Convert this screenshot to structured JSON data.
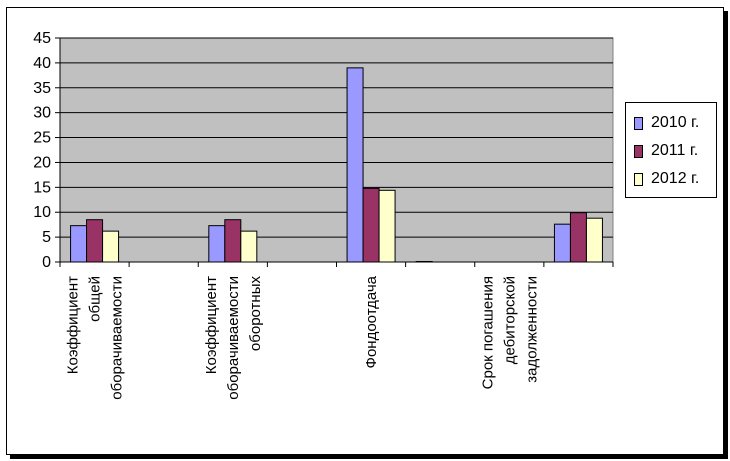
{
  "chart_data": {
    "type": "bar",
    "categories": [
      [
        "Коэффициент",
        "общей",
        "оборачиваемости"
      ],
      [
        "",
        "",
        ""
      ],
      [
        "Коэффициент",
        "оборачиваемости",
        "оборотных"
      ],
      [
        "",
        "",
        ""
      ],
      [
        "Фондоотдача"
      ],
      [
        "",
        "",
        ""
      ],
      [
        "Срок погашения",
        "дебиторской",
        "задолженности"
      ],
      [
        "",
        "",
        ""
      ]
    ],
    "series": [
      {
        "name": "2010 г.",
        "color": "#9999ff",
        "values": [
          7.3,
          null,
          7.3,
          null,
          39,
          0.1,
          null,
          7.6
        ]
      },
      {
        "name": "2011 г.",
        "color": "#993366",
        "values": [
          8.5,
          null,
          8.5,
          null,
          14.8,
          null,
          null,
          9.9
        ]
      },
      {
        "name": "2012 г.",
        "color": "#ffffcc",
        "values": [
          6.2,
          null,
          6.2,
          null,
          14.4,
          null,
          null,
          8.8
        ]
      }
    ],
    "yticks": [
      "0",
      "5",
      "10",
      "15",
      "20",
      "25",
      "30",
      "35",
      "40",
      "45"
    ],
    "ylim": [
      0,
      45
    ],
    "grid": true,
    "plot_background": "#c0c0c0",
    "legend_position": "right"
  }
}
